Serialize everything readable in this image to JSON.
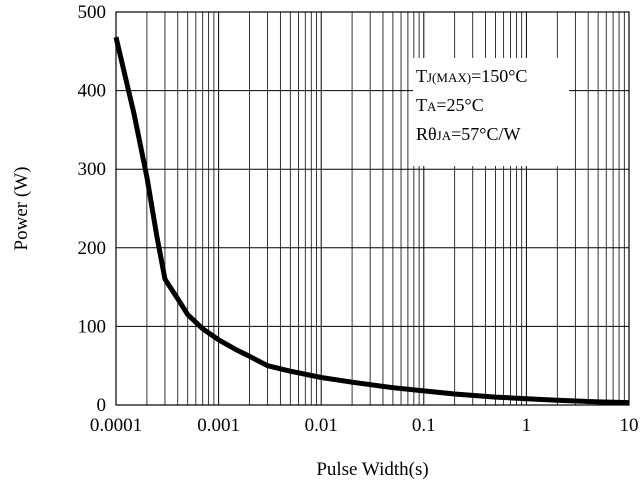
{
  "chart_data": {
    "type": "line",
    "title": "",
    "xlabel": "Pulse Width(s)",
    "ylabel": "Power (W)",
    "x_scale": "log",
    "xlim": [
      0.0001,
      10
    ],
    "ylim": [
      0,
      500
    ],
    "grid": true,
    "x_ticks": [
      "0.0001",
      "0.001",
      "0.01",
      "0.1",
      "1",
      "10"
    ],
    "y_ticks": [
      "0",
      "100",
      "200",
      "300",
      "400",
      "500"
    ],
    "annotations": [
      {
        "main": "T",
        "sub": "J(MAX)",
        "rest": "=150°C"
      },
      {
        "main": "T",
        "sub": "A",
        "rest": "=25°C"
      },
      {
        "main": "Rθ",
        "sub": "JA",
        "rest": "=57°C/W"
      }
    ],
    "series": [
      {
        "x": [
          0.0001,
          0.00015,
          0.0002,
          0.00025,
          0.0003,
          0.0004,
          0.0005,
          0.0007,
          0.001,
          0.0015,
          0.002,
          0.003,
          0.005,
          0.01,
          0.02,
          0.05,
          0.1,
          0.2,
          0.5,
          1,
          2,
          5,
          10
        ],
        "values": [
          468,
          370,
          290,
          215,
          160,
          135,
          115,
          97,
          83,
          70,
          62,
          50,
          43,
          35,
          29,
          22,
          18,
          14,
          10,
          8,
          6,
          4,
          3
        ]
      }
    ]
  }
}
